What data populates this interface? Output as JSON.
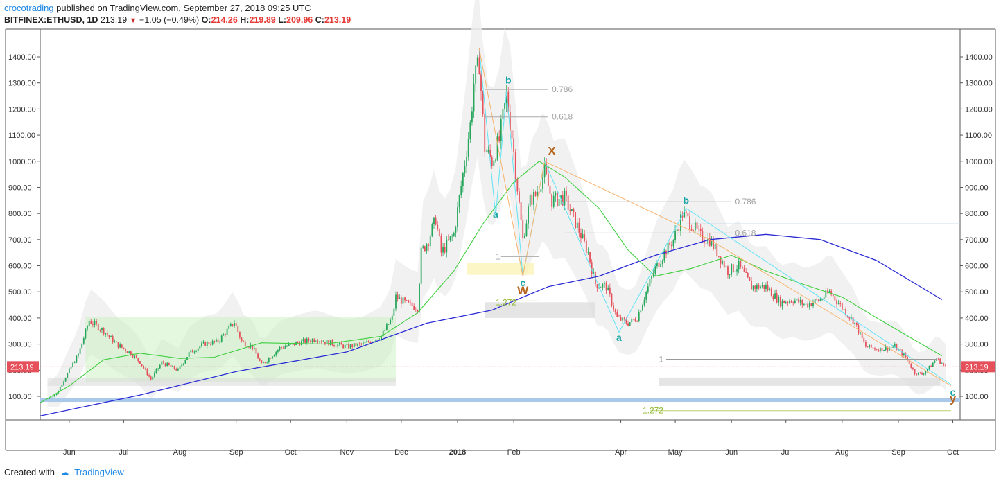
{
  "header": {
    "author": "crocotrading",
    "published_text": "published on TradingView.com, September 27, 2018 09:25 UTC",
    "symbol": "BITFINEX:ETHUSD, 1D",
    "last": "213.19",
    "change": "−1.05 (−0.49%)",
    "o_label": "O:",
    "o_value": "214.26",
    "h_label": "H:",
    "h_value": "219.89",
    "l_label": "L:",
    "l_value": "209.96",
    "c_label": "C:",
    "c_value": "213.19"
  },
  "footer": {
    "created_with": "Created with",
    "brand": "TradingView"
  },
  "colors": {
    "up": "#26a65b",
    "down": "#e5505a",
    "ma_green": "#3fcf3f",
    "ma_blue": "#2b2bd6",
    "fib_gray": "#999999",
    "cyan": "#5ee3f5",
    "orange": "#f7b26a",
    "label_teal": "#17a6a6",
    "label_brown": "#b5651d"
  },
  "chart_data": {
    "type": "candlestick",
    "yaxis_ticks": [
      100,
      200,
      300,
      400,
      500,
      600,
      700,
      800,
      900,
      1000,
      1100,
      1200,
      1300,
      1400
    ],
    "yaxis_tick_labels": [
      "100.00",
      "200.00",
      "300.00",
      "400.00",
      "500.00",
      "600.00",
      "700.00",
      "800.00",
      "900.00",
      "1000.00",
      "1100.00",
      "1200.00",
      "1300.00",
      "1400.00"
    ],
    "ylim": [
      50,
      1450
    ],
    "xlim": [
      "2017-05-16",
      "2018-10-05"
    ],
    "xaxis_ticks": [
      {
        "date": "2017-06-01",
        "label": "Jun"
      },
      {
        "date": "2017-07-01",
        "label": "Jul"
      },
      {
        "date": "2017-08-01",
        "label": "Aug"
      },
      {
        "date": "2017-09-01",
        "label": "Sep"
      },
      {
        "date": "2017-10-01",
        "label": "Oct"
      },
      {
        "date": "2017-11-01",
        "label": "Nov"
      },
      {
        "date": "2017-12-01",
        "label": "Dec"
      },
      {
        "date": "2018-01-01",
        "label": "2018"
      },
      {
        "date": "2018-02-01",
        "label": "Feb"
      },
      {
        "date": "2018-04-01",
        "label": "Apr"
      },
      {
        "date": "2018-05-01",
        "label": "May"
      },
      {
        "date": "2018-06-01",
        "label": "Jun"
      },
      {
        "date": "2018-07-01",
        "label": "Jul"
      },
      {
        "date": "2018-08-01",
        "label": "Aug"
      },
      {
        "date": "2018-09-01",
        "label": "Sep"
      },
      {
        "date": "2018-10-01",
        "label": "Oct"
      }
    ],
    "price_path": [
      [
        "2017-05-20",
        90
      ],
      [
        "2017-05-25",
        110
      ],
      [
        "2017-06-01",
        200
      ],
      [
        "2017-06-06",
        260
      ],
      [
        "2017-06-12",
        390
      ],
      [
        "2017-06-20",
        350
      ],
      [
        "2017-06-27",
        300
      ],
      [
        "2017-07-05",
        265
      ],
      [
        "2017-07-10",
        230
      ],
      [
        "2017-07-16",
        165
      ],
      [
        "2017-07-22",
        230
      ],
      [
        "2017-07-31",
        200
      ],
      [
        "2017-08-06",
        265
      ],
      [
        "2017-08-14",
        300
      ],
      [
        "2017-08-22",
        310
      ],
      [
        "2017-08-31",
        385
      ],
      [
        "2017-09-04",
        310
      ],
      [
        "2017-09-10",
        290
      ],
      [
        "2017-09-15",
        220
      ],
      [
        "2017-09-25",
        285
      ],
      [
        "2017-10-05",
        305
      ],
      [
        "2017-10-15",
        320
      ],
      [
        "2017-10-25",
        300
      ],
      [
        "2017-11-01",
        290
      ],
      [
        "2017-11-10",
        300
      ],
      [
        "2017-11-20",
        330
      ],
      [
        "2017-11-26",
        400
      ],
      [
        "2017-11-28",
        480
      ],
      [
        "2017-12-05",
        450
      ],
      [
        "2017-12-10",
        440
      ],
      [
        "2017-12-12",
        650
      ],
      [
        "2017-12-16",
        700
      ],
      [
        "2017-12-20",
        780
      ],
      [
        "2017-12-23",
        650
      ],
      [
        "2017-12-30",
        720
      ],
      [
        "2018-01-04",
        950
      ],
      [
        "2018-01-08",
        1140
      ],
      [
        "2018-01-10",
        1300
      ],
      [
        "2018-01-13",
        1380
      ],
      [
        "2018-01-16",
        1050
      ],
      [
        "2018-01-20",
        1000
      ],
      [
        "2018-01-24",
        1080
      ],
      [
        "2018-01-28",
        1250
      ],
      [
        "2018-01-31",
        1100
      ],
      [
        "2018-02-03",
        900
      ],
      [
        "2018-02-06",
        700
      ],
      [
        "2018-02-10",
        850
      ],
      [
        "2018-02-13",
        870
      ],
      [
        "2018-02-18",
        960
      ],
      [
        "2018-02-22",
        850
      ],
      [
        "2018-03-01",
        860
      ],
      [
        "2018-03-08",
        750
      ],
      [
        "2018-03-14",
        650
      ],
      [
        "2018-03-18",
        530
      ],
      [
        "2018-03-24",
        520
      ],
      [
        "2018-03-30",
        400
      ],
      [
        "2018-04-05",
        380
      ],
      [
        "2018-04-10",
        400
      ],
      [
        "2018-04-15",
        500
      ],
      [
        "2018-04-20",
        590
      ],
      [
        "2018-04-25",
        650
      ],
      [
        "2018-04-30",
        700
      ],
      [
        "2018-05-05",
        800
      ],
      [
        "2018-05-10",
        760
      ],
      [
        "2018-05-15",
        710
      ],
      [
        "2018-05-20",
        700
      ],
      [
        "2018-05-25",
        640
      ],
      [
        "2018-05-30",
        580
      ],
      [
        "2018-06-05",
        600
      ],
      [
        "2018-06-12",
        520
      ],
      [
        "2018-06-20",
        520
      ],
      [
        "2018-06-28",
        460
      ],
      [
        "2018-07-05",
        470
      ],
      [
        "2018-07-12",
        450
      ],
      [
        "2018-07-20",
        470
      ],
      [
        "2018-07-25",
        500
      ],
      [
        "2018-08-01",
        440
      ],
      [
        "2018-08-08",
        380
      ],
      [
        "2018-08-14",
        290
      ],
      [
        "2018-08-22",
        280
      ],
      [
        "2018-08-30",
        290
      ],
      [
        "2018-09-05",
        250
      ],
      [
        "2018-09-10",
        190
      ],
      [
        "2018-09-14",
        185
      ],
      [
        "2018-09-18",
        210
      ],
      [
        "2018-09-22",
        245
      ],
      [
        "2018-09-27",
        213
      ]
    ],
    "green_ma": [
      [
        "2017-05-16",
        75
      ],
      [
        "2017-06-01",
        140
      ],
      [
        "2017-06-20",
        240
      ],
      [
        "2017-07-10",
        265
      ],
      [
        "2017-08-01",
        245
      ],
      [
        "2017-08-20",
        250
      ],
      [
        "2017-09-15",
        305
      ],
      [
        "2017-10-20",
        300
      ],
      [
        "2017-11-20",
        330
      ],
      [
        "2017-12-10",
        420
      ],
      [
        "2017-12-30",
        580
      ],
      [
        "2018-01-15",
        760
      ],
      [
        "2018-02-01",
        920
      ],
      [
        "2018-02-15",
        1000
      ],
      [
        "2018-03-01",
        940
      ],
      [
        "2018-03-20",
        820
      ],
      [
        "2018-04-05",
        660
      ],
      [
        "2018-04-20",
        560
      ],
      [
        "2018-05-10",
        590
      ],
      [
        "2018-06-01",
        640
      ],
      [
        "2018-06-20",
        580
      ],
      [
        "2018-07-10",
        530
      ],
      [
        "2018-08-01",
        480
      ],
      [
        "2018-08-25",
        380
      ],
      [
        "2018-09-25",
        255
      ]
    ],
    "blue_ma": [
      [
        "2017-05-16",
        25
      ],
      [
        "2017-07-10",
        105
      ],
      [
        "2017-09-01",
        195
      ],
      [
        "2017-11-01",
        270
      ],
      [
        "2017-12-15",
        380
      ],
      [
        "2018-01-20",
        430
      ],
      [
        "2018-02-20",
        520
      ],
      [
        "2018-03-20",
        560
      ],
      [
        "2018-04-20",
        640
      ],
      [
        "2018-05-20",
        700
      ],
      [
        "2018-06-20",
        720
      ],
      [
        "2018-07-20",
        700
      ],
      [
        "2018-08-20",
        620
      ],
      [
        "2018-09-25",
        470
      ]
    ],
    "annotations": {
      "labels": [
        {
          "text": "a",
          "date": "2018-01-22",
          "price": 785,
          "color": "label_teal"
        },
        {
          "text": "b",
          "date": "2018-01-29",
          "price": 1298,
          "color": "label_teal"
        },
        {
          "text": "c",
          "date": "2018-02-06",
          "price": 522,
          "color": "label_teal"
        },
        {
          "text": "W",
          "date": "2018-02-06",
          "price": 490,
          "color": "label_brown"
        },
        {
          "text": "X",
          "date": "2018-02-22",
          "price": 1025,
          "color": "label_brown"
        },
        {
          "text": "a",
          "date": "2018-03-31",
          "price": 312,
          "color": "label_teal"
        },
        {
          "text": "b",
          "date": "2018-05-07",
          "price": 838,
          "color": "label_teal"
        },
        {
          "text": "c",
          "date": "2018-10-01",
          "price": 103,
          "color": "label_teal"
        },
        {
          "text": "y",
          "date": "2018-10-01",
          "price": 78,
          "color": "label_brown"
        }
      ],
      "fib_levels": [
        {
          "text": "0.786",
          "date": "2018-02-22",
          "price": 1275
        },
        {
          "text": "0.618",
          "date": "2018-02-22",
          "price": 1170
        },
        {
          "text": "1",
          "date": "2018-01-22",
          "price": 635
        },
        {
          "text": "1.272",
          "date": "2018-01-22",
          "price": 460
        },
        {
          "text": "0.786",
          "date": "2018-06-03",
          "price": 845
        },
        {
          "text": "0.618",
          "date": "2018-06-03",
          "price": 725
        },
        {
          "text": "1",
          "date": "2018-04-22",
          "price": 242
        },
        {
          "text": "1.272",
          "date": "2018-04-13",
          "price": 45
        }
      ],
      "price_tag": "213.19",
      "horizontal_line_price": 760
    }
  }
}
